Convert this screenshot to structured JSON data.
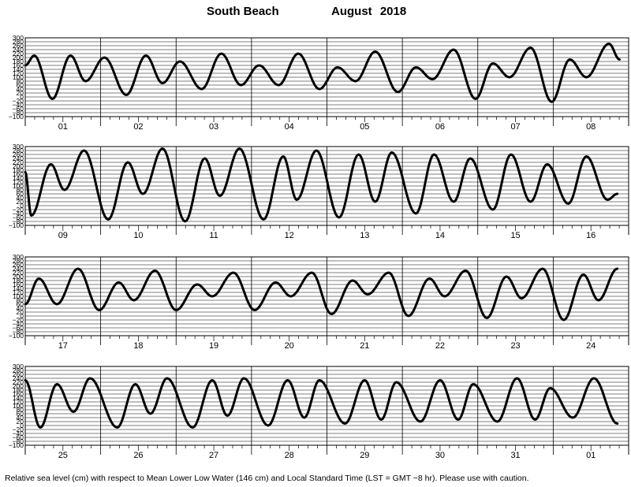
{
  "header": {
    "station": "South Beach",
    "month_year": "August   2018"
  },
  "footer": {
    "note": "Relative sea level (cm) with respect to Mean Lower Low Water (146 cm) and Local Standard Time (LST = GMT −8 hr). Please use with caution."
  },
  "chart_data": {
    "type": "line",
    "y_unit": "cm",
    "ylim": [
      -100,
      300
    ],
    "yticks": [
      300,
      280,
      260,
      240,
      220,
      200,
      180,
      160,
      140,
      120,
      100,
      80,
      60,
      40,
      20,
      0,
      -20,
      -40,
      -60,
      -80,
      -100
    ],
    "ytick_labels": [
      "300",
      "280",
      "260",
      "240",
      "220",
      "200",
      "180",
      "160",
      "140",
      "120",
      "100",
      "80",
      "60",
      "40",
      "20",
      "0",
      "−20",
      "−40",
      "−60",
      "−80",
      "−100"
    ],
    "grid": true,
    "panels": [
      {
        "days": [
          "01",
          "02",
          "03",
          "04",
          "05",
          "06",
          "07",
          "08"
        ],
        "extrema": [
          [
            0.0,
            160
          ],
          [
            0.12,
            210
          ],
          [
            0.36,
            -10
          ],
          [
            0.6,
            210
          ],
          [
            0.8,
            80
          ],
          [
            1.05,
            200
          ],
          [
            1.34,
            10
          ],
          [
            1.6,
            210
          ],
          [
            1.82,
            70
          ],
          [
            2.05,
            180
          ],
          [
            2.34,
            40
          ],
          [
            2.6,
            220
          ],
          [
            2.86,
            60
          ],
          [
            3.1,
            160
          ],
          [
            3.36,
            60
          ],
          [
            3.62,
            220
          ],
          [
            3.9,
            40
          ],
          [
            4.14,
            150
          ],
          [
            4.38,
            80
          ],
          [
            4.64,
            230
          ],
          [
            4.94,
            25
          ],
          [
            5.18,
            150
          ],
          [
            5.4,
            90
          ],
          [
            5.68,
            240
          ],
          [
            5.97,
            -10
          ],
          [
            6.2,
            170
          ],
          [
            6.42,
            100
          ],
          [
            6.7,
            250
          ],
          [
            6.98,
            -25
          ],
          [
            7.22,
            190
          ],
          [
            7.44,
            100
          ],
          [
            7.74,
            270
          ],
          [
            7.88,
            190
          ]
        ]
      },
      {
        "days": [
          "09",
          "10",
          "11",
          "12",
          "13",
          "14",
          "15",
          "16"
        ],
        "extrema": [
          [
            0.0,
            170
          ],
          [
            0.08,
            -50
          ],
          [
            0.34,
            210
          ],
          [
            0.52,
            80
          ],
          [
            0.78,
            280
          ],
          [
            1.1,
            -70
          ],
          [
            1.36,
            220
          ],
          [
            1.56,
            60
          ],
          [
            1.82,
            290
          ],
          [
            2.12,
            -80
          ],
          [
            2.38,
            240
          ],
          [
            2.58,
            50
          ],
          [
            2.84,
            290
          ],
          [
            3.16,
            -70
          ],
          [
            3.42,
            250
          ],
          [
            3.6,
            30
          ],
          [
            3.86,
            280
          ],
          [
            4.16,
            -60
          ],
          [
            4.42,
            260
          ],
          [
            4.64,
            20
          ],
          [
            4.86,
            270
          ],
          [
            5.18,
            -40
          ],
          [
            5.42,
            260
          ],
          [
            5.68,
            20
          ],
          [
            5.9,
            240
          ],
          [
            6.2,
            -20
          ],
          [
            6.44,
            260
          ],
          [
            6.7,
            20
          ],
          [
            6.92,
            210
          ],
          [
            7.2,
            10
          ],
          [
            7.44,
            250
          ],
          [
            7.72,
            30
          ],
          [
            7.85,
            60
          ]
        ]
      },
      {
        "days": [
          "17",
          "18",
          "19",
          "20",
          "21",
          "22",
          "23",
          "24"
        ],
        "extrema": [
          [
            0.0,
            60
          ],
          [
            0.18,
            190
          ],
          [
            0.42,
            60
          ],
          [
            0.7,
            240
          ],
          [
            0.98,
            30
          ],
          [
            1.24,
            170
          ],
          [
            1.44,
            80
          ],
          [
            1.72,
            230
          ],
          [
            2.0,
            30
          ],
          [
            2.28,
            160
          ],
          [
            2.48,
            100
          ],
          [
            2.76,
            220
          ],
          [
            3.04,
            30
          ],
          [
            3.32,
            170
          ],
          [
            3.52,
            100
          ],
          [
            3.8,
            220
          ],
          [
            4.06,
            10
          ],
          [
            4.34,
            180
          ],
          [
            4.54,
            110
          ],
          [
            4.82,
            220
          ],
          [
            5.08,
            0
          ],
          [
            5.36,
            190
          ],
          [
            5.56,
            100
          ],
          [
            5.84,
            230
          ],
          [
            6.12,
            -10
          ],
          [
            6.38,
            200
          ],
          [
            6.58,
            90
          ],
          [
            6.86,
            240
          ],
          [
            7.14,
            -20
          ],
          [
            7.4,
            210
          ],
          [
            7.6,
            80
          ],
          [
            7.85,
            240
          ]
        ]
      },
      {
        "days": [
          "25",
          "26",
          "27",
          "28",
          "29",
          "30",
          "31",
          "01"
        ],
        "extrema": [
          [
            0.0,
            230
          ],
          [
            0.2,
            -10
          ],
          [
            0.42,
            210
          ],
          [
            0.64,
            70
          ],
          [
            0.86,
            240
          ],
          [
            1.22,
            -10
          ],
          [
            1.46,
            210
          ],
          [
            1.66,
            60
          ],
          [
            1.88,
            240
          ],
          [
            2.22,
            -10
          ],
          [
            2.48,
            230
          ],
          [
            2.68,
            50
          ],
          [
            2.9,
            240
          ],
          [
            3.22,
            0
          ],
          [
            3.48,
            230
          ],
          [
            3.7,
            40
          ],
          [
            3.9,
            230
          ],
          [
            4.24,
            10
          ],
          [
            4.5,
            230
          ],
          [
            4.72,
            30
          ],
          [
            4.92,
            220
          ],
          [
            5.24,
            20
          ],
          [
            5.5,
            230
          ],
          [
            5.74,
            30
          ],
          [
            5.94,
            210
          ],
          [
            6.26,
            20
          ],
          [
            6.52,
            240
          ],
          [
            6.76,
            30
          ],
          [
            6.96,
            190
          ],
          [
            7.26,
            40
          ],
          [
            7.54,
            240
          ],
          [
            7.85,
            10
          ]
        ]
      }
    ]
  }
}
